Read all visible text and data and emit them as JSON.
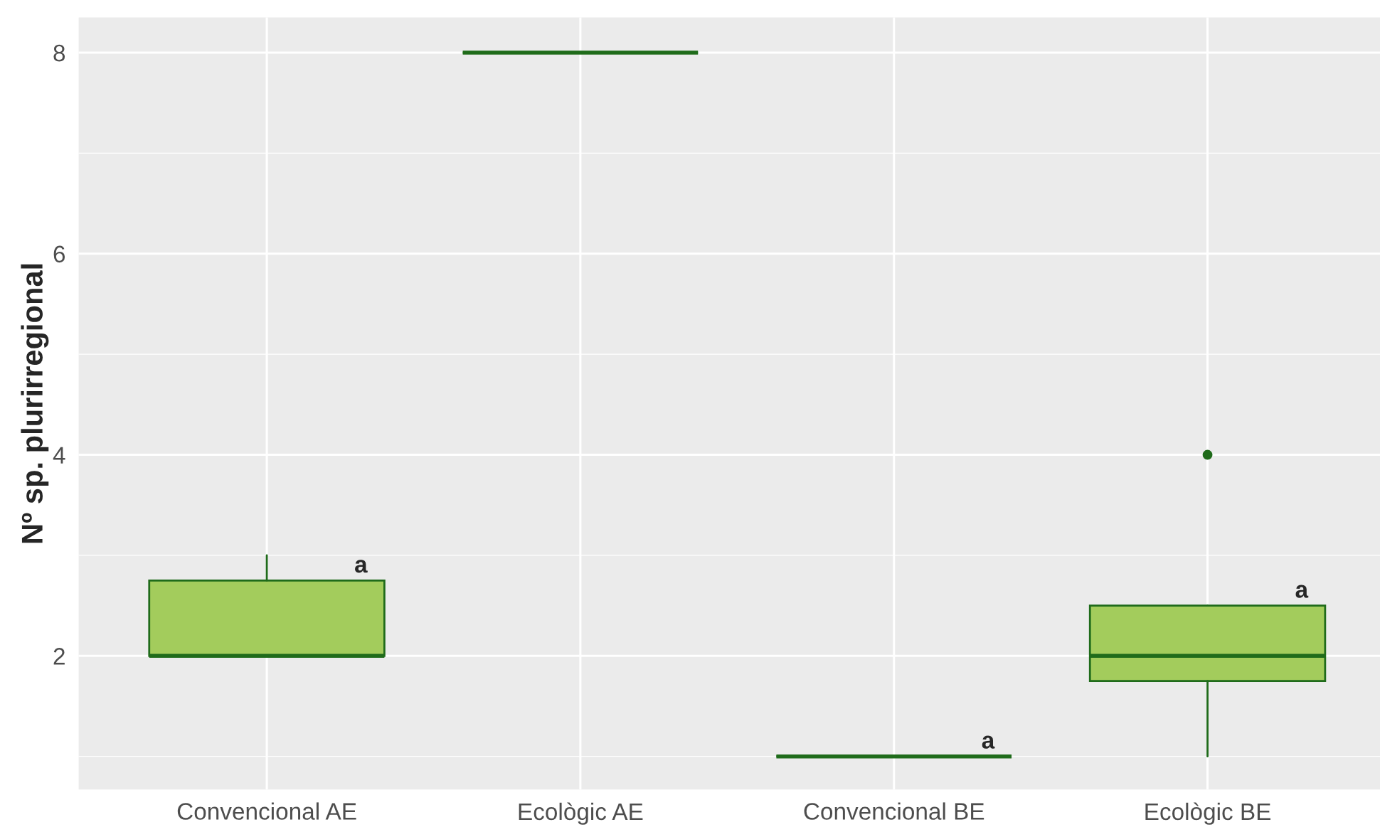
{
  "chart_data": {
    "type": "box",
    "ylabel": "Nº sp. plurirregional",
    "categories": [
      "Convencional AE",
      "Ecològic AE",
      "Convencional BE",
      "Ecològic BE"
    ],
    "boxes": [
      {
        "low": 2,
        "q1": 2,
        "median": 2,
        "q3": 2.75,
        "high": 3
      },
      {
        "low": 8,
        "q1": 8,
        "median": 8,
        "q3": 8,
        "high": 8
      },
      {
        "low": 1,
        "q1": 1,
        "median": 1,
        "q3": 1,
        "high": 1
      },
      {
        "low": 1,
        "q1": 1.75,
        "median": 2,
        "q3": 2.5,
        "high": 2.5,
        "outliers": [
          4
        ]
      }
    ],
    "ylim": [
      0.67,
      8.35
    ],
    "yticks": [
      2,
      4,
      6,
      8
    ],
    "grid": true,
    "annotations": [
      "a",
      "a",
      "a"
    ]
  }
}
